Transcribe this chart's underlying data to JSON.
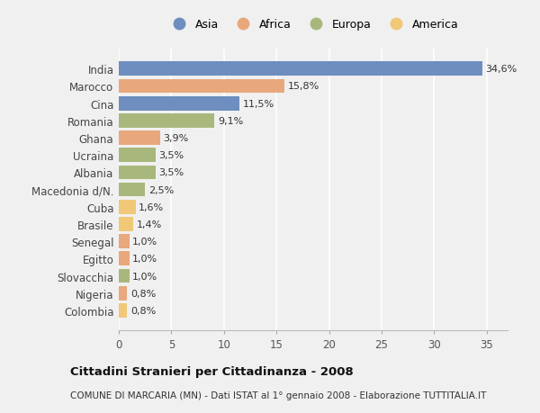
{
  "countries": [
    "India",
    "Marocco",
    "Cina",
    "Romania",
    "Ghana",
    "Ucraina",
    "Albania",
    "Macedonia d/N.",
    "Cuba",
    "Brasile",
    "Senegal",
    "Egitto",
    "Slovacchia",
    "Nigeria",
    "Colombia"
  ],
  "values": [
    34.6,
    15.8,
    11.5,
    9.1,
    3.9,
    3.5,
    3.5,
    2.5,
    1.6,
    1.4,
    1.0,
    1.0,
    1.0,
    0.8,
    0.8
  ],
  "labels": [
    "34,6%",
    "15,8%",
    "11,5%",
    "9,1%",
    "3,9%",
    "3,5%",
    "3,5%",
    "2,5%",
    "1,6%",
    "1,4%",
    "1,0%",
    "1,0%",
    "1,0%",
    "0,8%",
    "0,8%"
  ],
  "continents": [
    "Asia",
    "Africa",
    "Asia",
    "Europa",
    "Africa",
    "Europa",
    "Europa",
    "Europa",
    "America",
    "America",
    "Africa",
    "Africa",
    "Europa",
    "Africa",
    "America"
  ],
  "continent_colors": {
    "Asia": "#6d8ebf",
    "Africa": "#e8a87c",
    "Europa": "#a8b87c",
    "America": "#f0c878"
  },
  "legend_order": [
    "Asia",
    "Africa",
    "Europa",
    "America"
  ],
  "title": "Cittadini Stranieri per Cittadinanza - 2008",
  "subtitle": "COMUNE DI MARCARIA (MN) - Dati ISTAT al 1° gennaio 2008 - Elaborazione TUTTITALIA.IT",
  "xlim": [
    0,
    37
  ],
  "xticks": [
    0,
    5,
    10,
    15,
    20,
    25,
    30,
    35
  ],
  "background_color": "#f0f0f0",
  "grid_color": "#ffffff",
  "bar_height": 0.82
}
